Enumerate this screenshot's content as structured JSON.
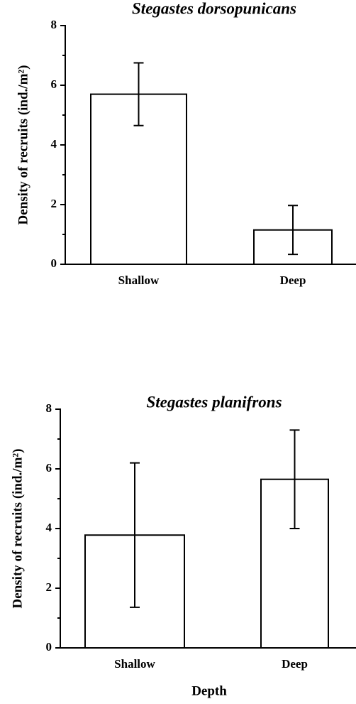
{
  "chart_data": [
    {
      "type": "bar",
      "title": "Stegastes dorsopunicans",
      "y_label": "Density of recruits (ind./m²)",
      "categories": [
        "Shallow",
        "Deep"
      ],
      "values": [
        5.7,
        1.15
      ],
      "errors": [
        1.05,
        0.82
      ],
      "color": "#ffffff",
      "ylim": [
        0,
        8
      ],
      "yticks": [
        0,
        2,
        4,
        6,
        8
      ],
      "minor_yticks": [
        1,
        3,
        5,
        7
      ]
    },
    {
      "type": "bar",
      "title": "Stegastes planifrons",
      "y_label": "Density of recruits (ind./m²)",
      "x_label": "Depth",
      "categories": [
        "Shallow",
        "Deep"
      ],
      "values": [
        3.78,
        5.65
      ],
      "errors": [
        2.42,
        1.65
      ],
      "color": "#ffffff",
      "ylim": [
        0,
        8
      ],
      "yticks": [
        0,
        2,
        4,
        6,
        8
      ],
      "minor_yticks": [
        1,
        3,
        5,
        7
      ]
    }
  ]
}
